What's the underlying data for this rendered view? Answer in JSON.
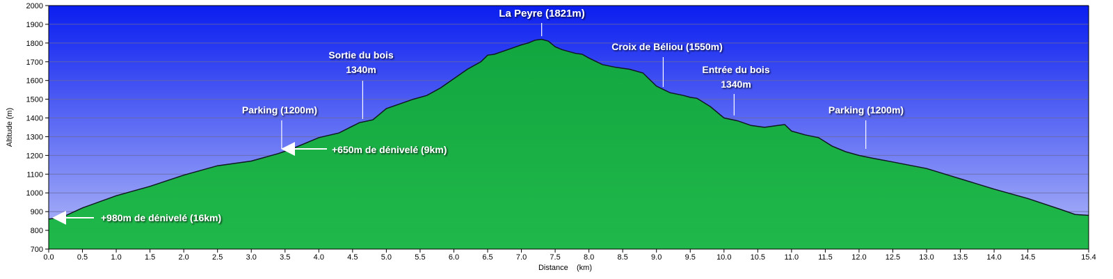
{
  "chart_data": {
    "type": "area",
    "xlabel": "Distance    (km)",
    "ylabel": "Altitude (m)",
    "xlim": [
      0,
      15.4
    ],
    "ylim": [
      700,
      2000
    ],
    "x_ticks": [
      0.0,
      0.5,
      1.0,
      1.5,
      2.0,
      2.5,
      3.0,
      3.5,
      4.0,
      4.5,
      5.0,
      5.5,
      6.0,
      6.5,
      7.0,
      7.5,
      8.0,
      8.5,
      9.0,
      9.5,
      10.0,
      10.5,
      11.0,
      11.5,
      12.0,
      12.5,
      13.0,
      13.5,
      14.0,
      14.5,
      15.4
    ],
    "x_tick_labels": [
      "0.0",
      "0.5",
      "1.0",
      "1.5",
      "2.0",
      "2.5",
      "3.0",
      "3.5",
      "4.0",
      "4.5",
      "5.0",
      "5.5",
      "6.0",
      "6.5",
      "7.0",
      "7.5",
      "8.0",
      "8.5",
      "9.0",
      "9.5",
      "10.0",
      "10.5",
      "11.0",
      "11.5",
      "12.0",
      "12.5",
      "13.0",
      "13.5",
      "14.0",
      "14.5",
      "15.4"
    ],
    "y_ticks": [
      700,
      800,
      900,
      1000,
      1100,
      1200,
      1300,
      1400,
      1500,
      1600,
      1700,
      1800,
      1900,
      2000
    ],
    "y_tick_labels": [
      "700",
      "800",
      "900",
      "1000",
      "1100",
      "1200",
      "1300",
      "1400",
      "1500",
      "1600",
      "1700",
      "1800",
      "1900",
      "2000"
    ],
    "grid": "horizontal",
    "colors": {
      "sky_top": "#0a1ef0",
      "sky_bottom": "#b4bcf8",
      "terrain_top": "#12a640",
      "terrain_bottom": "#20b84a",
      "outline": "#101820",
      "gridline": "#6a6aa0"
    },
    "series": [
      {
        "x": [
          0.0,
          0.2,
          0.5,
          1.0,
          1.5,
          2.0,
          2.5,
          3.0,
          3.2,
          3.4,
          3.6,
          4.0,
          4.3,
          4.6,
          4.8,
          5.0,
          5.2,
          5.4,
          5.6,
          5.8,
          6.0,
          6.2,
          6.4,
          6.5,
          6.6,
          6.8,
          7.0,
          7.1,
          7.2,
          7.3,
          7.4,
          7.5,
          7.6,
          7.8,
          7.9,
          8.0,
          8.2,
          8.4,
          8.6,
          8.8,
          9.0,
          9.2,
          9.4,
          9.5,
          9.6,
          9.8,
          10.0,
          10.2,
          10.4,
          10.6,
          10.8,
          10.9,
          11.0,
          11.2,
          11.4,
          11.6,
          11.8,
          12.0,
          12.2,
          12.5,
          13.0,
          13.5,
          14.0,
          14.5,
          15.0,
          15.2,
          15.4
        ],
        "y": [
          860,
          870,
          920,
          985,
          1035,
          1095,
          1145,
          1170,
          1190,
          1210,
          1235,
          1295,
          1320,
          1375,
          1390,
          1450,
          1475,
          1500,
          1520,
          1560,
          1610,
          1660,
          1700,
          1735,
          1740,
          1765,
          1790,
          1800,
          1815,
          1820,
          1810,
          1780,
          1765,
          1745,
          1740,
          1720,
          1685,
          1670,
          1660,
          1640,
          1570,
          1535,
          1520,
          1510,
          1505,
          1460,
          1400,
          1385,
          1360,
          1350,
          1360,
          1365,
          1330,
          1310,
          1295,
          1250,
          1220,
          1200,
          1185,
          1165,
          1130,
          1075,
          1020,
          970,
          910,
          885,
          880
        ]
      }
    ],
    "annotations": [
      {
        "lines": [
          "La Peyre (1821m)"
        ],
        "x": 7.3,
        "y": 1821,
        "leader": "vertical"
      },
      {
        "lines": [
          "Sortie du bois",
          "1340m"
        ],
        "x": 4.65,
        "y": 1380,
        "leader": "vertical"
      },
      {
        "lines": [
          "Parking (1200m)"
        ],
        "x": 3.45,
        "y": 1205,
        "leader": "vertical"
      },
      {
        "lines": [
          "Croix de Béliou (1550m)"
        ],
        "x": 9.1,
        "y": 1550,
        "leader": "vertical"
      },
      {
        "lines": [
          "Entrée du bois",
          "1340m"
        ],
        "x": 10.15,
        "y": 1395,
        "leader": "vertical"
      },
      {
        "lines": [
          "Parking (1200m)"
        ],
        "x": 12.1,
        "y": 1205,
        "leader": "vertical"
      },
      {
        "lines": [
          "+650m de dénivelé (9km)"
        ],
        "x": 3.45,
        "y": 1205,
        "leader": "arrow"
      },
      {
        "lines": [
          "+980m de dénivelé (16km)"
        ],
        "x": 0.05,
        "y": 850,
        "leader": "arrow"
      }
    ]
  }
}
